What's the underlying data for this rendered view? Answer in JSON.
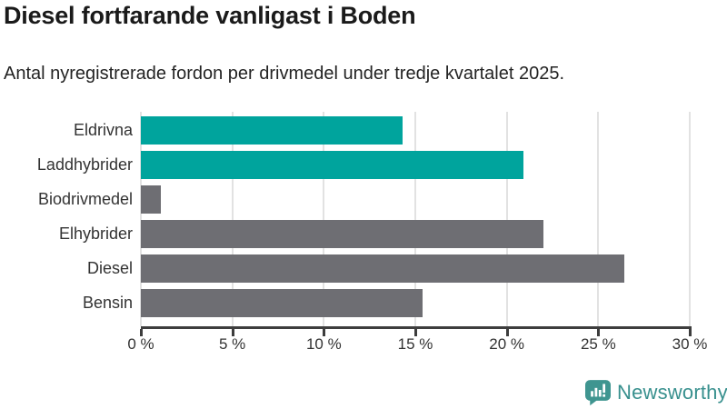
{
  "title": "Diesel fortfarande vanligast i Boden",
  "subtitle": "Antal nyregistrerade fordon per drivmedel under tredje kvartalet 2025.",
  "chart_data": {
    "type": "bar",
    "orientation": "horizontal",
    "title": "Diesel fortfarande vanligast i Boden",
    "subtitle": "Antal nyregistrerade fordon per drivmedel under tredje kvartalet 2025.",
    "categories": [
      "Eldrivna",
      "Laddhybrider",
      "Biodrivmedel",
      "Elhybrider",
      "Diesel",
      "Bensin"
    ],
    "values": [
      14.3,
      20.9,
      1.1,
      22.0,
      26.4,
      15.4
    ],
    "unit": "%",
    "xlim": [
      0,
      30
    ],
    "x_tick_values": [
      0,
      5,
      10,
      15,
      20,
      25,
      30
    ],
    "x_tick_labels": [
      "0 %",
      "5 %",
      "10 %",
      "15 %",
      "20 %",
      "25 %",
      "30 %"
    ],
    "grid": true,
    "highlight_color": "#00a49d",
    "default_color": "#6e6e73",
    "bar_colors": [
      "#00a49d",
      "#00a49d",
      "#6e6e73",
      "#6e6e73",
      "#6e6e73",
      "#6e6e73"
    ]
  },
  "colors": {
    "gridline": "#e2e2e2",
    "axis": "#3d3d3d",
    "title_text": "#1a1a1a",
    "label_text": "#333333"
  },
  "branding": {
    "logo_text": "Newsworthy",
    "logo_color": "#38908e",
    "logo_icon": "newsworthy-bubble-barchart-icon",
    "logo_icon_color": "#3f9590"
  }
}
